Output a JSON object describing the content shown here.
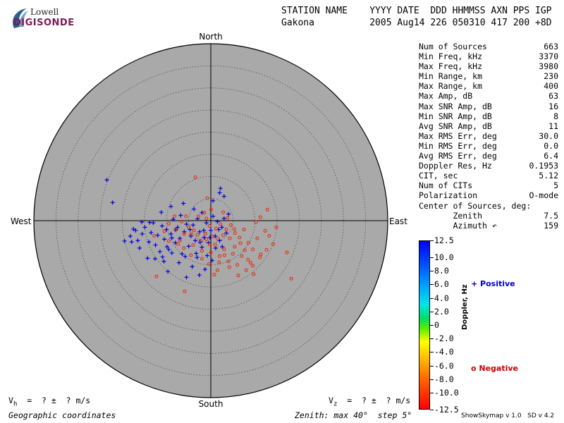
{
  "logo": {
    "top_text": "Lowell",
    "bottom_text": "DIGISONDE"
  },
  "header": {
    "line1": "STATION NAME    YYYY DATE  DDD HHMMSS AXN PPS IGP",
    "line2": "Gakona          2005 Aug14 226 050310 417 200 +8D"
  },
  "stats": [
    {
      "label": "Num of Sources",
      "value": "663"
    },
    {
      "label": "Min Freq, kHz",
      "value": "3370"
    },
    {
      "label": "Max Freq, kHz",
      "value": "3980"
    },
    {
      "label": "Min Range, km",
      "value": "230"
    },
    {
      "label": "Max Range, km",
      "value": "400"
    },
    {
      "label": "Max Amp, dB",
      "value": "63"
    },
    {
      "label": "Max SNR Amp, dB",
      "value": "16"
    },
    {
      "label": "Min SNR Amp, dB",
      "value": "8"
    },
    {
      "label": "Avg SNR Amp, dB",
      "value": "11"
    },
    {
      "label": "Max RMS Err, deg",
      "value": "30.0"
    },
    {
      "label": "Min RMS Err, deg",
      "value": "0.0"
    },
    {
      "label": "Avg RMS Err, deg",
      "value": "6.4"
    },
    {
      "label": "Doppler Res, Hz",
      "value": "0.1953"
    },
    {
      "label": "CIT, sec",
      "value": "5.12"
    },
    {
      "label": "Num of CITs",
      "value": "5"
    },
    {
      "label": "Polarization",
      "value": "O-mode"
    },
    {
      "label": "Center of Sources, deg:",
      "value": ""
    },
    {
      "label": "       Zenith",
      "value": "7.5"
    },
    {
      "label": "       Azimuth ↶",
      "value": "159"
    }
  ],
  "directions": {
    "north": "North",
    "south": "South",
    "west": "West",
    "east": "East"
  },
  "colorbar": {
    "label": "Doppler, Hz",
    "ticks": [
      "12.5",
      "10.0",
      "8.0",
      "6.0",
      "4.0",
      "2.0",
      "0",
      "-2.0",
      "-4.0",
      "-6.0",
      "-8.0",
      "-10.0",
      "-12.5"
    ],
    "tick_values": [
      12.5,
      10.0,
      8.0,
      6.0,
      4.0,
      2.0,
      0,
      -2.0,
      -4.0,
      -6.0,
      -8.0,
      -10.0,
      -12.5
    ]
  },
  "legend": {
    "positive": "+ Positive",
    "negative": "o Negative"
  },
  "footer": {
    "vh": "V  =  ? ±  ? m/s",
    "vh_sub": "h",
    "vz": "V  =  ? ±  ? m/s",
    "vz_sub": "z",
    "coords": "Geographic coordinates",
    "zenith_info": "Zenith: max 40°  step 5°",
    "version": "ShowSkymap v 1.0   SD v 4.2"
  },
  "chart_data": {
    "type": "scatter",
    "coordinate_system": "polar sky map (zenith/azimuth), east-west and north-south offsets in degrees",
    "zenith_max": 40,
    "zenith_step": 5,
    "colors": {
      "disc": "#a9a9a9",
      "positive": "#0000dd",
      "negative": "#ee2200"
    },
    "series": [
      {
        "name": "Positive",
        "marker": "+",
        "points": [
          [
            -23.5,
            9.2
          ],
          [
            -22.2,
            4.1
          ],
          [
            -18.2,
            -3.5
          ],
          [
            -17.5,
            -1.9
          ],
          [
            -17.9,
            -4.8
          ],
          [
            -17.0,
            -2.2
          ],
          [
            -16.5,
            -4.5
          ],
          [
            -15.5,
            -3.0
          ],
          [
            -14.9,
            -1.5
          ],
          [
            -14.0,
            -4.8
          ],
          [
            -13.5,
            -2.7
          ],
          [
            -13.0,
            -0.5
          ],
          [
            -12.5,
            -5.5
          ],
          [
            -12.0,
            -3.3
          ],
          [
            -11.5,
            -7.0
          ],
          [
            -11.0,
            -1.2
          ],
          [
            -10.5,
            -4.2
          ],
          [
            -10.0,
            -2.0
          ],
          [
            -9.5,
            -6.5
          ],
          [
            -9.0,
            -3.0
          ],
          [
            -8.5,
            0.3
          ],
          [
            -8.0,
            -5.0
          ],
          [
            -7.5,
            -1.5
          ],
          [
            -7.0,
            -4.0
          ],
          [
            -6.5,
            -7.5
          ],
          [
            -6.0,
            -2.5
          ],
          [
            -5.5,
            -0.8
          ],
          [
            -5.0,
            -5.8
          ],
          [
            -4.5,
            -3.5
          ],
          [
            -4.0,
            -1.0
          ],
          [
            -3.5,
            -4.5
          ],
          [
            -3.0,
            0.4
          ],
          [
            -2.5,
            -2.5
          ],
          [
            -2.0,
            -6.0
          ],
          [
            -1.5,
            -3.8
          ],
          [
            -1.0,
            -0.5
          ],
          [
            -0.5,
            -5.0
          ],
          [
            0.0,
            -2.2
          ],
          [
            0.5,
            1.0
          ],
          [
            1.0,
            -3.5
          ],
          [
            1.5,
            -0.2
          ],
          [
            2.0,
            -4.5
          ],
          [
            2.5,
            -1.5
          ],
          [
            3.0,
            0.5
          ],
          [
            3.5,
            -2.8
          ],
          [
            4.0,
            1.5
          ],
          [
            0.5,
            4.5
          ],
          [
            2.0,
            6.3
          ],
          [
            3.0,
            5.5
          ],
          [
            2.2,
            7.3
          ],
          [
            -12.6,
            -8.6
          ],
          [
            -14.3,
            -8.5
          ],
          [
            -9.7,
            -11.5
          ],
          [
            -7.2,
            -9.5
          ],
          [
            -5.5,
            -12.8
          ],
          [
            -3.1,
            -8.3
          ],
          [
            -1.3,
            -11.0
          ],
          [
            -5.8,
            -8.1
          ],
          [
            -8.8,
            -7.3
          ],
          [
            -10.6,
            -9.2
          ],
          [
            -16.1,
            -6.2
          ],
          [
            -19.5,
            -4.6
          ],
          [
            -11.2,
            1.9
          ],
          [
            -9.0,
            3.2
          ],
          [
            -6.8,
            1.2
          ],
          [
            -3.8,
            2.6
          ],
          [
            -2.0,
            1.8
          ],
          [
            -6.2,
            3.9
          ],
          [
            -4.7,
            -2.0
          ],
          [
            -3.3,
            -7.4
          ],
          [
            -0.8,
            -7.9
          ],
          [
            0.3,
            -9.0
          ],
          [
            1.1,
            -6.2
          ],
          [
            -0.2,
            -3.8
          ],
          [
            -2.4,
            -4.9
          ],
          [
            -1.6,
            -2.2
          ],
          [
            1.8,
            -2.0
          ],
          [
            2.6,
            -5.9
          ],
          [
            -7.9,
            -2.1
          ],
          [
            -8.8,
            -3.9
          ],
          [
            -9.9,
            -5.9
          ],
          [
            -13.8,
            -0.4
          ],
          [
            -15.6,
            -0.3
          ],
          [
            -10.9,
            -8.2
          ],
          [
            -4.2,
            -10.4
          ],
          [
            -2.6,
            -12.3
          ]
        ]
      },
      {
        "name": "Negative",
        "marker": "o",
        "points": [
          [
            -3.5,
            9.8
          ],
          [
            -0.8,
            5.1
          ],
          [
            0.1,
            2.5
          ],
          [
            -1.5,
            1.8
          ],
          [
            -2.8,
            1.0
          ],
          [
            -1.0,
            0.5
          ],
          [
            -0.3,
            -1.2
          ],
          [
            1.2,
            -1.8
          ],
          [
            2.2,
            -0.8
          ],
          [
            3.5,
            -2.0
          ],
          [
            4.5,
            -1.0
          ],
          [
            5.5,
            -2.8
          ],
          [
            6.5,
            -3.8
          ],
          [
            7.5,
            -2.0
          ],
          [
            8.5,
            -5.0
          ],
          [
            9.5,
            -6.5
          ],
          [
            10.5,
            -4.0
          ],
          [
            -5.0,
            -1.5
          ],
          [
            -6.0,
            -3.0
          ],
          [
            -7.0,
            -4.5
          ],
          [
            -8.0,
            -2.0
          ],
          [
            -4.0,
            -5.5
          ],
          [
            -3.0,
            -3.2
          ],
          [
            -2.0,
            -6.8
          ],
          [
            -1.0,
            -4.2
          ],
          [
            0.0,
            -7.2
          ],
          [
            1.0,
            -5.5
          ],
          [
            2.0,
            -8.0
          ],
          [
            3.0,
            -6.5
          ],
          [
            4.0,
            -9.2
          ],
          [
            5.0,
            -7.5
          ],
          [
            6.0,
            -10.0
          ],
          [
            7.0,
            -8.0
          ],
          [
            8.0,
            -11.2
          ],
          [
            9.0,
            -9.5
          ],
          [
            4.2,
            -10.5
          ],
          [
            1.5,
            -11.2
          ],
          [
            0.8,
            -12.2
          ],
          [
            6.2,
            -12.4
          ],
          [
            9.5,
            -10.2
          ],
          [
            11.1,
            -8.3
          ],
          [
            12.6,
            -6.6
          ],
          [
            14.1,
            -5.3
          ],
          [
            13.2,
            -3.4
          ],
          [
            17.2,
            -7.2
          ],
          [
            18.2,
            -13.1
          ],
          [
            -12.3,
            -12.6
          ],
          [
            -5.9,
            -16.0
          ],
          [
            -12.8,
            -3.4
          ],
          [
            -9.5,
            -0.7
          ],
          [
            -6.6,
            -0.2
          ],
          [
            -8.2,
            1.0
          ],
          [
            -3.8,
            -2.2
          ],
          [
            -2.3,
            -4.5
          ],
          [
            -1.2,
            -2.9
          ],
          [
            0.4,
            -3.6
          ],
          [
            1.6,
            -4.1
          ],
          [
            2.8,
            -3.3
          ],
          [
            4.3,
            -4.0
          ],
          [
            5.4,
            -5.9
          ],
          [
            6.7,
            -5.1
          ],
          [
            7.7,
            -6.7
          ],
          [
            3.1,
            -7.8
          ],
          [
            1.9,
            -9.4
          ],
          [
            -0.4,
            -9.8
          ],
          [
            -2.0,
            -8.6
          ],
          [
            -4.5,
            -7.8
          ],
          [
            -6.1,
            -6.2
          ],
          [
            -7.4,
            -5.3
          ],
          [
            -9.5,
            -4.6
          ],
          [
            -10.5,
            -2.4
          ],
          [
            8.4,
            -8.8
          ],
          [
            9.7,
            -12.1
          ],
          [
            11.3,
            -7.6
          ],
          [
            10.2,
            -0.3
          ],
          [
            12.3,
            -2.3
          ],
          [
            12.8,
            2.5
          ],
          [
            14.8,
            -1.5
          ],
          [
            11.2,
            0.8
          ],
          [
            5.3,
            -1.9
          ],
          [
            -0.2,
            -5.4
          ],
          [
            -4.5,
            -3.1
          ],
          [
            -5.6,
            1.0
          ],
          [
            3.8,
            0.6
          ],
          [
            2.8,
            1.9
          ]
        ]
      }
    ]
  }
}
